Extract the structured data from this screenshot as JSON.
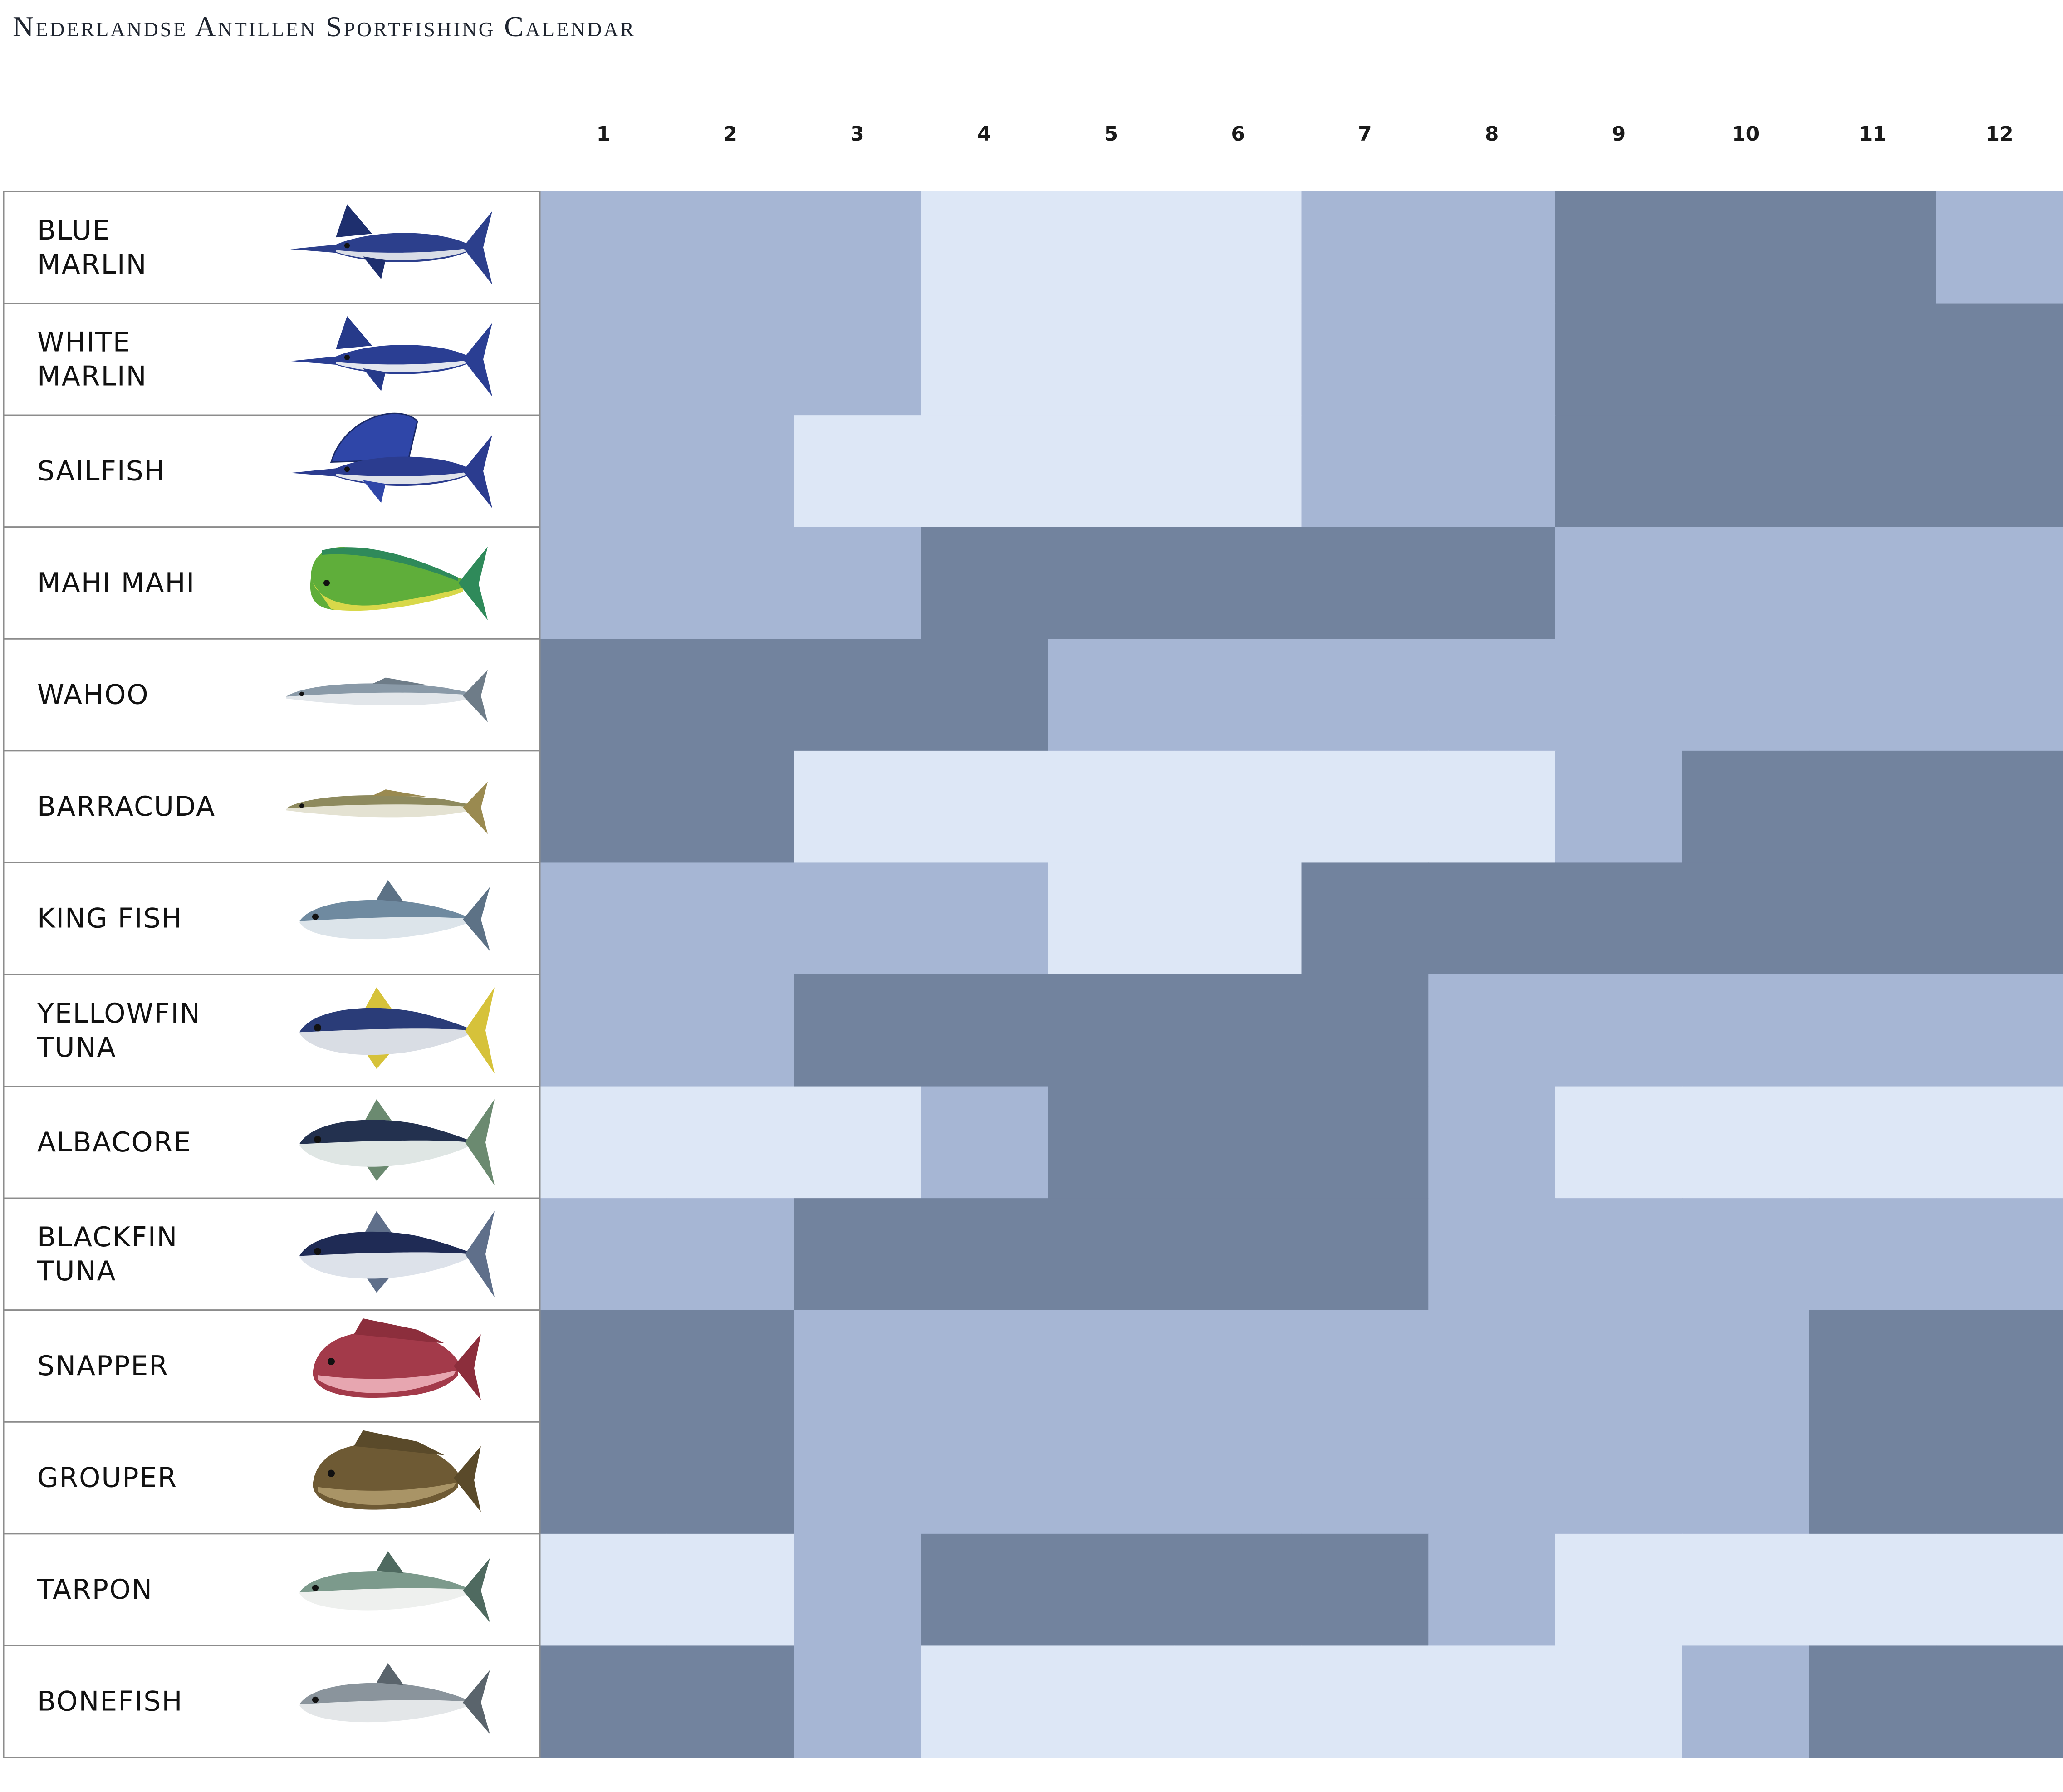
{
  "chart_data": {
    "type": "heatmap",
    "title": "Nederlandse Antillen Sportfishing Calendar",
    "xlabel": "",
    "ylabel": "",
    "months": [
      "1",
      "2",
      "3",
      "4",
      "5",
      "6",
      "7",
      "8",
      "9",
      "10",
      "11",
      "12"
    ],
    "levels": {
      "1": "#dde7f6",
      "2": "#a6b6d4",
      "3": "#72839e"
    },
    "species": [
      {
        "name": [
          "BLUE",
          "MARLIN"
        ],
        "icon": "blue-marlin-icon",
        "body": "#2c3f8c",
        "belly": "#d9dde6",
        "fin": "#1e2f6e",
        "shape": "marlin",
        "values": [
          2,
          2,
          2,
          1,
          1,
          1,
          2,
          2,
          3,
          3,
          3,
          2
        ]
      },
      {
        "name": [
          "WHITE",
          "MARLIN"
        ],
        "icon": "white-marlin-icon",
        "body": "#2a3e93",
        "belly": "#e3e6ee",
        "fin": "#263a8a",
        "shape": "marlin",
        "values": [
          2,
          2,
          2,
          1,
          1,
          1,
          2,
          2,
          3,
          3,
          3,
          3
        ]
      },
      {
        "name": [
          "SAILFISH"
        ],
        "icon": "sailfish-icon",
        "body": "#2b3c8f",
        "belly": "#e0e3ea",
        "fin": "#2f46a8",
        "shape": "sailfish",
        "values": [
          2,
          2,
          1,
          1,
          1,
          1,
          2,
          2,
          3,
          3,
          3,
          3
        ]
      },
      {
        "name": [
          "MAHI MAHI"
        ],
        "icon": "mahi-mahi-icon",
        "body": "#5fae3a",
        "belly": "#d8d84a",
        "fin": "#2f8a5a",
        "shape": "mahi",
        "values": [
          2,
          2,
          2,
          3,
          3,
          3,
          3,
          3,
          2,
          2,
          2,
          2
        ]
      },
      {
        "name": [
          "WAHOO"
        ],
        "icon": "wahoo-icon",
        "body": "#8a9aa8",
        "belly": "#e2e6ea",
        "fin": "#6e7c88",
        "shape": "slim",
        "values": [
          3,
          3,
          3,
          3,
          2,
          2,
          2,
          2,
          2,
          2,
          2,
          2
        ]
      },
      {
        "name": [
          "BARRACUDA"
        ],
        "icon": "barracuda-icon",
        "body": "#8e8a5e",
        "belly": "#e4e2d2",
        "fin": "#9a8a50",
        "shape": "slim",
        "values": [
          3,
          3,
          1,
          1,
          1,
          1,
          1,
          1,
          2,
          3,
          3,
          3
        ]
      },
      {
        "name": [
          "KING FISH"
        ],
        "icon": "king-fish-icon",
        "body": "#6f8aa0",
        "belly": "#dce4ea",
        "fin": "#5d7286",
        "shape": "fish",
        "values": [
          2,
          2,
          2,
          2,
          1,
          1,
          3,
          3,
          3,
          3,
          3,
          3
        ]
      },
      {
        "name": [
          "YELLOWFIN",
          "TUNA"
        ],
        "icon": "yellowfin-tuna-icon",
        "body": "#2a3c78",
        "belly": "#d9dde4",
        "fin": "#d6c23a",
        "shape": "tuna",
        "values": [
          2,
          2,
          3,
          3,
          3,
          3,
          3,
          2,
          2,
          2,
          2,
          2
        ]
      },
      {
        "name": [
          "ALBACORE"
        ],
        "icon": "albacore-icon",
        "body": "#23314f",
        "belly": "#dfe6e4",
        "fin": "#6b8a70",
        "shape": "tuna",
        "values": [
          1,
          1,
          1,
          2,
          3,
          3,
          3,
          2,
          1,
          1,
          1,
          1
        ]
      },
      {
        "name": [
          "BLACKFIN",
          "TUNA"
        ],
        "icon": "blackfin-tuna-icon",
        "body": "#1f2b55",
        "belly": "#dde2ea",
        "fin": "#5f6f8a",
        "shape": "tuna",
        "values": [
          2,
          2,
          3,
          3,
          3,
          3,
          3,
          2,
          2,
          2,
          2,
          2
        ]
      },
      {
        "name": [
          "SNAPPER"
        ],
        "icon": "snapper-icon",
        "body": "#a33a4a",
        "belly": "#e7a6b0",
        "fin": "#8c2e3c",
        "shape": "perch",
        "values": [
          3,
          3,
          2,
          2,
          2,
          2,
          2,
          2,
          2,
          2,
          3,
          3
        ]
      },
      {
        "name": [
          "GROUPER"
        ],
        "icon": "grouper-icon",
        "body": "#6e5a34",
        "belly": "#a99466",
        "fin": "#5a4a2a",
        "shape": "perch",
        "values": [
          3,
          3,
          2,
          2,
          2,
          2,
          2,
          2,
          2,
          2,
          3,
          3
        ]
      },
      {
        "name": [
          "TARPON"
        ],
        "icon": "tarpon-icon",
        "body": "#7c9a8c",
        "belly": "#eef0ee",
        "fin": "#4f6a60",
        "shape": "fish",
        "values": [
          1,
          1,
          2,
          3,
          3,
          3,
          3,
          2,
          1,
          1,
          1,
          1
        ]
      },
      {
        "name": [
          "BONEFISH"
        ],
        "icon": "bonefish-icon",
        "body": "#8a949c",
        "belly": "#e3e6e8",
        "fin": "#5a646c",
        "shape": "fish",
        "values": [
          3,
          3,
          2,
          1,
          1,
          1,
          1,
          1,
          1,
          2,
          3,
          3
        ]
      }
    ]
  }
}
